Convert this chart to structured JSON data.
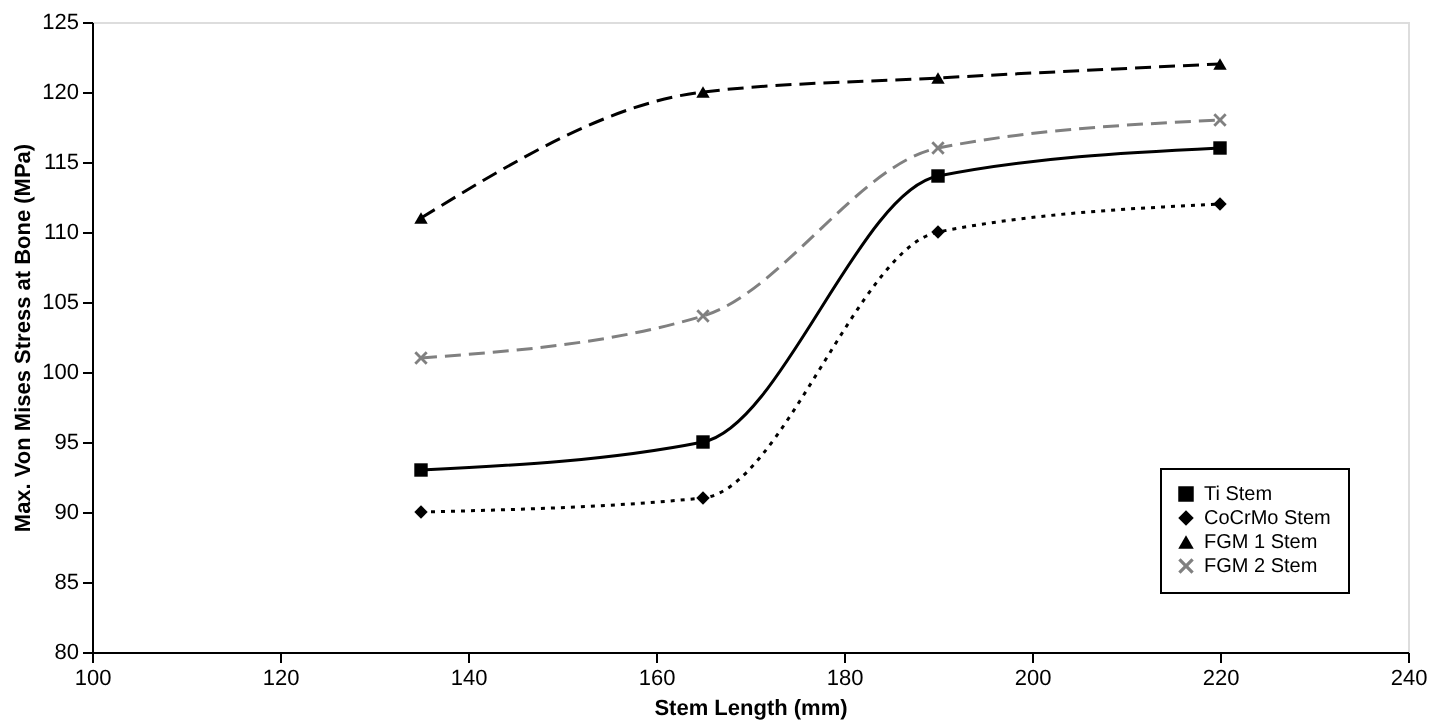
{
  "chart_data": {
    "type": "line",
    "xlabel": "Stem Length (mm)",
    "ylabel": "Max. Von Mises Stress at Bone (MPa)",
    "x": [
      135,
      165,
      190,
      220
    ],
    "series": [
      {
        "name": "Ti Stem",
        "color": "#000000",
        "values": [
          93,
          95,
          114,
          116
        ],
        "marker": "square",
        "line_style": "solid"
      },
      {
        "name": "CoCrMo Stem",
        "color": "#000000",
        "values": [
          90,
          91,
          110,
          112
        ],
        "marker": "diamond",
        "line_style": "dotted"
      },
      {
        "name": "FGM 1 Stem",
        "color": "#000000",
        "values": [
          111,
          120,
          121,
          122
        ],
        "marker": "triangle",
        "line_style": "dashed"
      },
      {
        "name": "FGM 2 Stem",
        "color": "#808080",
        "values": [
          101,
          104,
          116,
          118
        ],
        "marker": "cross",
        "line_style": "dashed"
      }
    ],
    "xlim": [
      100,
      240
    ],
    "xticks": [
      100,
      120,
      140,
      160,
      180,
      200,
      220,
      240
    ],
    "ylim": [
      80,
      125
    ],
    "yticks": [
      80,
      85,
      90,
      95,
      100,
      105,
      110,
      115,
      120,
      125
    ],
    "grid": false,
    "legend": "bottom right"
  }
}
